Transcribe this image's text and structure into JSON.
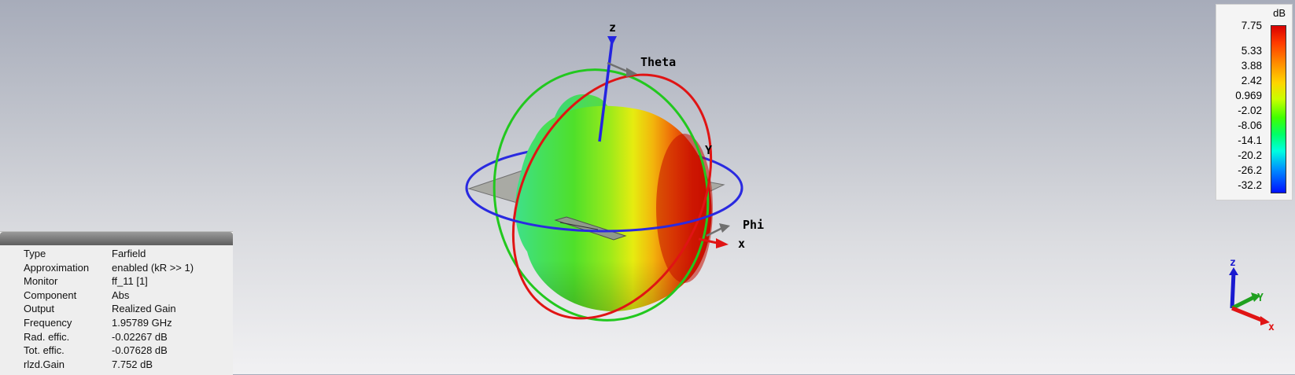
{
  "viewport": {
    "axes": {
      "x": "x",
      "y": "Y",
      "z": "z",
      "theta": "Theta",
      "phi": "Phi"
    },
    "triad": {
      "x": "x",
      "y": "Y",
      "z": "z"
    }
  },
  "legend": {
    "unit": "dB",
    "ticks": [
      "7.75",
      "5.33",
      "3.88",
      "2.42",
      "0.969",
      "-2.02",
      "-8.06",
      "-14.1",
      "-20.2",
      "-26.2",
      "-32.2"
    ],
    "colors": {
      "max": "#d80000",
      "min": "#0010ff"
    }
  },
  "info": {
    "rows": [
      {
        "key": "Type",
        "value": "Farfield"
      },
      {
        "key": "Approximation",
        "value": "enabled (kR >> 1)"
      },
      {
        "key": "Monitor",
        "value": "ff_11 [1]"
      },
      {
        "key": "Component",
        "value": "Abs"
      },
      {
        "key": "Output",
        "value": "Realized Gain"
      },
      {
        "key": "Frequency",
        "value": "1.95789 GHz"
      },
      {
        "key": "Rad. effic.",
        "value": "-0.02267 dB"
      },
      {
        "key": "Tot. effic.",
        "value": "-0.07628 dB"
      },
      {
        "key": "rlzd.Gain",
        "value": "7.752 dB"
      }
    ]
  }
}
